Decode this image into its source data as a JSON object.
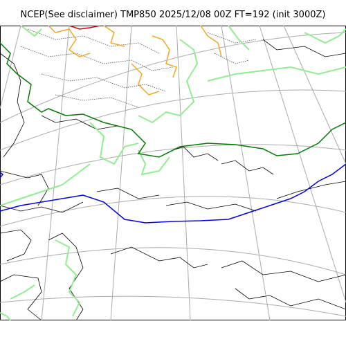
{
  "title": "NCEP(See disclaimer) TMP850 2025/12/08 00Z FT=192 (init 3000Z)",
  "colors": {
    "graticule": "#aaaaaa",
    "coast": "#000000",
    "isotherm_minor": "#333333",
    "contour_light_green": "#90ee90",
    "contour_dark_green": "#007a00",
    "contour_blue": "#0000ee",
    "contour_orange": "#f5a623",
    "contour_red": "#dd0000"
  }
}
